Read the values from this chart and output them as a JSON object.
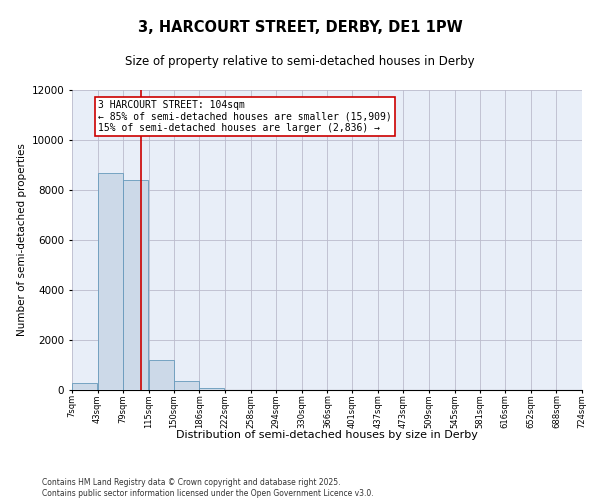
{
  "title": "3, HARCOURT STREET, DERBY, DE1 1PW",
  "subtitle": "Size of property relative to semi-detached houses in Derby",
  "xlabel": "Distribution of semi-detached houses by size in Derby",
  "ylabel": "Number of semi-detached properties",
  "property_size": 104,
  "property_label": "3 HARCOURT STREET: 104sqm",
  "pct_smaller": 85,
  "n_smaller": 15909,
  "pct_larger": 15,
  "n_larger": 2836,
  "annotation_box_color": "#cc0000",
  "bar_fill": "#ccd9e8",
  "bar_edge": "#6699bb",
  "vline_color": "#cc0000",
  "bg_color": "#e8eef8",
  "grid_color": "#bbbbcc",
  "footer_line1": "Contains HM Land Registry data © Crown copyright and database right 2025.",
  "footer_line2": "Contains public sector information licensed under the Open Government Licence v3.0.",
  "bins": [
    7,
    43,
    79,
    115,
    150,
    186,
    222,
    258,
    294,
    330,
    366,
    401,
    437,
    473,
    509,
    545,
    581,
    616,
    652,
    688,
    724
  ],
  "bin_labels": [
    "7sqm",
    "43sqm",
    "79sqm",
    "115sqm",
    "150sqm",
    "186sqm",
    "222sqm",
    "258sqm",
    "294sqm",
    "330sqm",
    "366sqm",
    "401sqm",
    "437sqm",
    "473sqm",
    "509sqm",
    "545sqm",
    "581sqm",
    "616sqm",
    "652sqm",
    "688sqm",
    "724sqm"
  ],
  "bar_heights": [
    300,
    8700,
    8400,
    1200,
    350,
    80,
    15,
    0,
    0,
    0,
    0,
    0,
    0,
    0,
    0,
    0,
    0,
    0,
    0,
    0
  ],
  "ylim": [
    0,
    12000
  ],
  "yticks": [
    0,
    2000,
    4000,
    6000,
    8000,
    10000,
    12000
  ]
}
